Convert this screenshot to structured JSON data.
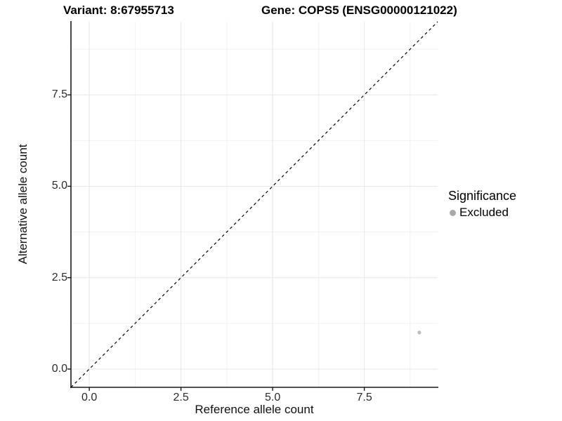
{
  "chart_data": {
    "type": "scatter",
    "title_left": "Variant: 8:67955713",
    "title_right": "Gene: COPS5 (ENSG00000121022)",
    "xlabel": "Reference allele count",
    "ylabel": "Alternative allele count",
    "xlim": [
      -0.5,
      9.5
    ],
    "ylim": [
      -0.5,
      9.5
    ],
    "x_tick_values": [
      0,
      2.5,
      5,
      7.5
    ],
    "x_tick_labels": [
      "0.0",
      "2.5",
      "5.0",
      "7.5"
    ],
    "y_tick_values": [
      0,
      2.5,
      5,
      7.5
    ],
    "y_tick_labels": [
      "0.0",
      "2.5",
      "5.0",
      "7.5"
    ],
    "minor_tick_values": [
      1.25,
      3.75,
      6.25,
      8.75
    ],
    "grid": true,
    "identity_line": {
      "style": "dashed",
      "from": [
        -0.5,
        -0.5
      ],
      "to": [
        9.5,
        9.5
      ],
      "color": "#000000"
    },
    "series": [
      {
        "name": "Excluded",
        "color": "#bdbdbd",
        "marker": "circle",
        "points": [
          {
            "x": 9,
            "y": 1
          }
        ]
      }
    ],
    "legend": {
      "title": "Significance",
      "position": "right",
      "entries": [
        {
          "label": "Excluded",
          "color": "#a9a9a9",
          "marker": "circle"
        }
      ]
    },
    "colors": {
      "background": "#ffffff",
      "axis_line": "#1a1a1a",
      "grid_major": "#e5e5e5",
      "grid_minor": "#f1f1f1",
      "tick_mark": "#1a1a1a"
    }
  }
}
